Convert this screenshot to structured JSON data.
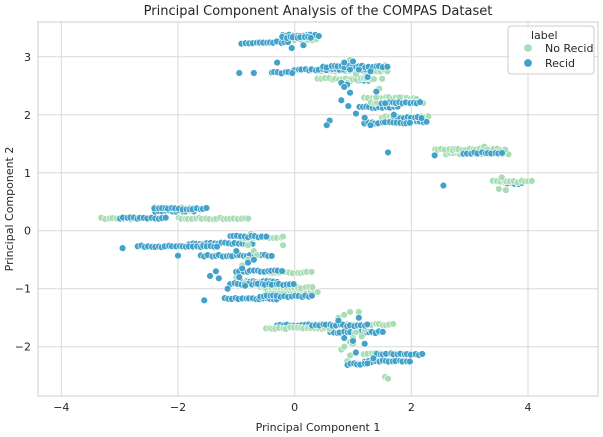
{
  "chart_data": {
    "type": "scatter",
    "title": "Principal Component Analysis of the COMPAS Dataset",
    "xlabel": "Principal Component 1",
    "ylabel": "Principal Component 2",
    "xlim": [
      -4.4,
      5.2
    ],
    "ylim": [
      -2.85,
      3.6
    ],
    "xticks": [
      -4,
      -2,
      0,
      2,
      4
    ],
    "yticks": [
      -2,
      -1,
      0,
      1,
      2,
      3
    ],
    "grid": true,
    "legend": {
      "title": "label",
      "placement": "top-right",
      "entries": [
        "No Recid",
        "Recid"
      ]
    },
    "colors": {
      "No Recid": "#a8ddb5",
      "Recid": "#43a2ca",
      "edge": "#ffffff",
      "grid": "#d9d9d9",
      "frame": "#cccccc"
    },
    "series": [
      {
        "name": "No Recid",
        "strips": [
          [
            -3.3,
            -2.5,
            0.21
          ],
          [
            -2.4,
            -1.6,
            0.39
          ],
          [
            -2.0,
            -0.8,
            0.21
          ],
          [
            -0.9,
            -0.2,
            -0.12
          ],
          [
            -0.5,
            0.3,
            -0.72
          ],
          [
            -0.6,
            0.3,
            -0.98
          ],
          [
            -0.5,
            0.4,
            -1.05
          ],
          [
            -0.5,
            0.6,
            -1.68
          ],
          [
            0.3,
            1.7,
            -1.62
          ],
          [
            1.2,
            2.0,
            -2.12
          ],
          [
            0.4,
            1.6,
            2.76
          ],
          [
            0.4,
            1.4,
            2.62
          ],
          [
            1.2,
            2.1,
            2.29
          ],
          [
            1.3,
            2.2,
            2.21
          ],
          [
            1.5,
            2.3,
            1.96
          ],
          [
            2.4,
            3.6,
            1.4
          ],
          [
            2.6,
            3.7,
            1.33
          ],
          [
            3.4,
            4.1,
            0.85
          ],
          [
            0.0,
            0.4,
            3.3
          ]
        ],
        "points": [
          [
            3.25,
            1.45
          ],
          [
            3.3,
            1.4
          ],
          [
            3.55,
            0.92
          ],
          [
            3.62,
            0.7
          ],
          [
            3.5,
            0.72
          ],
          [
            1.55,
            -2.52
          ],
          [
            1.6,
            -2.55
          ],
          [
            0.8,
            -2.05
          ],
          [
            0.85,
            -2.0
          ],
          [
            0.95,
            -2.15
          ],
          [
            0.9,
            -2.25
          ],
          [
            0.95,
            -1.92
          ],
          [
            1.0,
            -1.95
          ],
          [
            1.05,
            -1.75
          ],
          [
            1.0,
            -1.85
          ],
          [
            1.2,
            -1.7
          ],
          [
            1.15,
            -1.82
          ],
          [
            0.85,
            -1.45
          ],
          [
            0.95,
            -1.4
          ],
          [
            1.1,
            -1.4
          ],
          [
            0.75,
            -1.5
          ],
          [
            -0.8,
            -0.5
          ],
          [
            -0.9,
            -0.6
          ],
          [
            -0.95,
            -0.7
          ],
          [
            -0.85,
            -0.9
          ],
          [
            -1.0,
            -0.8
          ],
          [
            -0.7,
            -0.35
          ],
          [
            -0.65,
            -0.42
          ],
          [
            -0.75,
            -0.05
          ],
          [
            1.45,
            2.45
          ],
          [
            1.4,
            2.3
          ],
          [
            1.8,
            2.3
          ],
          [
            1.5,
            2.62
          ],
          [
            0.9,
            2.55
          ],
          [
            1.55,
            2.85
          ],
          [
            0.95,
            2.95
          ],
          [
            1.05,
            2.7
          ],
          [
            -0.2,
            -0.1
          ],
          [
            -0.2,
            -0.25
          ],
          [
            -0.8,
            -0.25
          ]
        ]
      },
      {
        "name": "Recid",
        "strips": [
          [
            -3.0,
            -2.2,
            0.22
          ],
          [
            -2.4,
            -1.5,
            0.38
          ],
          [
            -2.4,
            -1.7,
            0.34
          ],
          [
            -2.7,
            -1.3,
            -0.27
          ],
          [
            -1.8,
            -0.7,
            -0.22
          ],
          [
            -1.1,
            -0.5,
            -0.1
          ],
          [
            -1.6,
            -0.4,
            -0.43
          ],
          [
            -1.0,
            -0.2,
            -0.7
          ],
          [
            -0.9,
            -0.3,
            -0.88
          ],
          [
            -1.1,
            0.0,
            -0.92
          ],
          [
            -1.2,
            -0.3,
            -1.17
          ],
          [
            -0.6,
            0.3,
            -1.13
          ],
          [
            -0.3,
            0.4,
            -1.63
          ],
          [
            0.3,
            1.3,
            -1.63
          ],
          [
            0.6,
            1.5,
            -1.75
          ],
          [
            1.4,
            2.2,
            -2.13
          ],
          [
            1.2,
            2.0,
            -2.25
          ],
          [
            0.9,
            1.3,
            -2.3
          ],
          [
            -0.9,
            -0.5,
            3.23
          ],
          [
            -0.6,
            -0.1,
            3.25
          ],
          [
            -0.2,
            0.4,
            3.37
          ],
          [
            -0.2,
            0.3,
            3.33
          ],
          [
            0.0,
            1.2,
            2.78
          ],
          [
            0.5,
            1.6,
            2.83
          ],
          [
            0.9,
            1.3,
            2.6
          ],
          [
            1.5,
            2.2,
            2.21
          ],
          [
            1.1,
            1.8,
            2.13
          ],
          [
            1.7,
            2.2,
            1.95
          ],
          [
            1.6,
            2.3,
            1.88
          ],
          [
            1.2,
            2.0,
            1.86
          ],
          [
            2.7,
            3.6,
            1.4
          ],
          [
            2.9,
            3.6,
            1.34
          ],
          [
            3.6,
            3.9,
            0.82
          ],
          [
            -0.4,
            0.0,
            2.73
          ]
        ],
        "points": [
          [
            -0.95,
            2.72
          ],
          [
            -0.7,
            2.72
          ],
          [
            0.9,
            2.52
          ],
          [
            0.8,
            2.55
          ],
          [
            0.95,
            2.38
          ],
          [
            0.85,
            2.48
          ],
          [
            0.8,
            2.25
          ],
          [
            0.92,
            2.15
          ],
          [
            1.05,
            2.02
          ],
          [
            0.6,
            1.9
          ],
          [
            0.55,
            1.82
          ],
          [
            1.2,
            1.95
          ],
          [
            1.3,
            1.82
          ],
          [
            1.6,
            1.35
          ],
          [
            2.4,
            1.3
          ],
          [
            2.55,
            0.78
          ],
          [
            -2.0,
            -0.43
          ],
          [
            -1.55,
            -1.2
          ],
          [
            -1.35,
            -0.7
          ],
          [
            -1.45,
            -0.78
          ],
          [
            -1.3,
            -0.82
          ],
          [
            -1.15,
            -1.0
          ],
          [
            -0.95,
            -0.8
          ],
          [
            -0.85,
            -0.95
          ],
          [
            -0.9,
            -0.65
          ],
          [
            -0.8,
            -0.55
          ],
          [
            -0.7,
            -0.5
          ],
          [
            -1.0,
            -0.35
          ],
          [
            -2.95,
            -0.3
          ],
          [
            1.0,
            -1.9
          ],
          [
            1.2,
            -1.95
          ],
          [
            0.85,
            -1.85
          ],
          [
            0.75,
            -1.55
          ],
          [
            1.1,
            -1.5
          ],
          [
            1.05,
            -2.1
          ],
          [
            1.35,
            -2.2
          ],
          [
            0.85,
            2.9
          ],
          [
            1.0,
            2.92
          ],
          [
            0.95,
            2.78
          ],
          [
            1.25,
            2.65
          ],
          [
            1.4,
            2.4
          ],
          [
            1.55,
            2.2
          ],
          [
            1.7,
            2.0
          ],
          [
            -0.05,
            3.15
          ],
          [
            0.15,
            3.2
          ],
          [
            -0.3,
            2.9
          ],
          [
            1.1,
            2.78
          ],
          [
            1.3,
            2.75
          ]
        ]
      }
    ]
  }
}
